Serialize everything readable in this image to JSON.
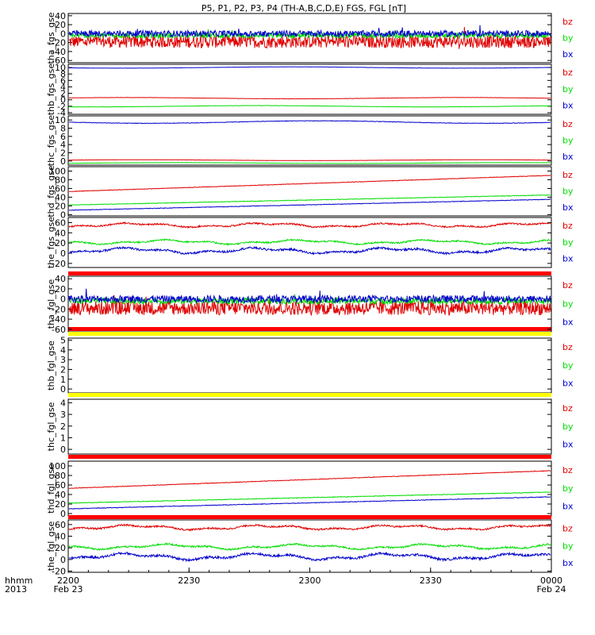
{
  "chart_data": {
    "type": "line",
    "title": "P5, P1, P2, P3, P4 (TH-A,B,C,D,E) FGS, FGL [nT]",
    "x_tick_labels": [
      "2200",
      "2230",
      "2300",
      "2330",
      "0000"
    ],
    "x_date_labels": [
      "Feb 23",
      "Feb 24"
    ],
    "x_axis_header": [
      "hhmm",
      "2013"
    ],
    "xlim": [
      "2200",
      "0000"
    ],
    "series_names": [
      "bz",
      "by",
      "bx"
    ],
    "colors": {
      "bz": "#e00000",
      "by": "#00dd00",
      "bx": "#0000cc",
      "bar_red": "#ff0000",
      "bar_yellow": "#ffff00"
    },
    "panels": [
      {
        "ylabel": "tha_fgs_gse",
        "yticks": [
          "40",
          "20",
          "0",
          "-20",
          "-40",
          "-60"
        ],
        "ylim": [
          -65,
          45
        ],
        "series": [
          {
            "name": "bz",
            "level": -18,
            "noise": 14,
            "mode": "noisy"
          },
          {
            "name": "by",
            "level": -4,
            "noise": 6,
            "mode": "noisy"
          },
          {
            "name": "bx",
            "level": 0,
            "noise": 7,
            "mode": "noisy"
          }
        ],
        "status_bar": "red"
      },
      {
        "ylabel": "thb_fgs_gse",
        "yticks": [
          "10",
          "8",
          "6",
          "4",
          "2",
          "0",
          "-2",
          "-4"
        ],
        "ylim": [
          -4.5,
          11
        ],
        "series": [
          {
            "name": "bz",
            "level": 0.5,
            "noise": 0.2,
            "mode": "smooth"
          },
          {
            "name": "by",
            "level": -2,
            "noise": 0.2,
            "mode": "smooth"
          },
          {
            "name": "bx",
            "level": 10,
            "noise": 0.2,
            "mode": "smooth"
          }
        ],
        "status_bar": null
      },
      {
        "ylabel": "thc_fgs_gse",
        "yticks": [
          "10",
          "8",
          "6",
          "4",
          "2",
          "0"
        ],
        "ylim": [
          -1,
          11
        ],
        "series": [
          {
            "name": "bz",
            "level": 0.2,
            "noise": 0.1,
            "mode": "smooth"
          },
          {
            "name": "by",
            "level": -0.5,
            "noise": 0.1,
            "mode": "smooth"
          },
          {
            "name": "bx",
            "level": 9.5,
            "noise": 0.3,
            "mode": "smooth"
          }
        ],
        "status_bar": null
      },
      {
        "ylabel": "thd_fgs_gse",
        "yticks": [
          "100",
          "80",
          "60",
          "40",
          "20",
          "0"
        ],
        "ylim": [
          -3,
          110
        ],
        "series": [
          {
            "name": "bz",
            "start": 53,
            "end": 90,
            "mode": "ramp"
          },
          {
            "name": "by",
            "start": 22,
            "end": 45,
            "mode": "ramp"
          },
          {
            "name": "bx",
            "start": 10,
            "end": 35,
            "mode": "ramp"
          }
        ],
        "status_bar": null
      },
      {
        "ylabel": "the_fgs_gse",
        "yticks": [
          "60",
          "40",
          "20",
          "0",
          "-20"
        ],
        "ylim": [
          -28,
          70
        ],
        "series": [
          {
            "name": "bz",
            "level": 55,
            "noise": 3,
            "mode": "wavy"
          },
          {
            "name": "by",
            "level": 22,
            "noise": 3,
            "mode": "wavy"
          },
          {
            "name": "bx",
            "level": 5,
            "noise": 4,
            "mode": "wavy"
          }
        ],
        "status_bar": "red"
      },
      {
        "ylabel": "tha_fgl_gse",
        "yticks": [
          "40",
          "20",
          "0",
          "-20",
          "-40",
          "-60"
        ],
        "ylim": [
          -65,
          45
        ],
        "series": [
          {
            "name": "bz",
            "level": -18,
            "noise": 14,
            "mode": "noisy"
          },
          {
            "name": "by",
            "level": -4,
            "noise": 6,
            "mode": "noisy"
          },
          {
            "name": "bx",
            "level": 0,
            "noise": 7,
            "mode": "noisy"
          }
        ],
        "status_bar": "yellow"
      },
      {
        "ylabel": "thb_fgl_gse",
        "yticks": [
          "5",
          "4",
          "3",
          "2",
          "1",
          "0"
        ],
        "ylim": [
          -0.4,
          5.2
        ],
        "series": [],
        "status_bar": "yellow"
      },
      {
        "ylabel": "thc_fgl_gse",
        "yticks": [
          "4",
          "3",
          "2",
          "1",
          "0"
        ],
        "ylim": [
          -0.4,
          4.3
        ],
        "series": [],
        "status_bar": "red"
      },
      {
        "ylabel": "thd_fgl_gse",
        "yticks": [
          "100",
          "80",
          "60",
          "40",
          "20",
          "0"
        ],
        "ylim": [
          -5,
          110
        ],
        "series": [
          {
            "name": "bz",
            "start": 53,
            "end": 90,
            "mode": "ramp"
          },
          {
            "name": "by",
            "start": 22,
            "end": 45,
            "mode": "ramp"
          },
          {
            "name": "bx",
            "start": 10,
            "end": 35,
            "mode": "ramp"
          }
        ],
        "status_bar": "red"
      },
      {
        "ylabel": "the_fgl_gse",
        "yticks": [
          "60",
          "40",
          "20",
          "0",
          "-20"
        ],
        "ylim": [
          -22,
          68
        ],
        "series": [
          {
            "name": "bz",
            "level": 55,
            "noise": 3,
            "mode": "wavy"
          },
          {
            "name": "by",
            "level": 22,
            "noise": 3,
            "mode": "wavy"
          },
          {
            "name": "bx",
            "level": 5,
            "noise": 4,
            "mode": "wavy"
          }
        ],
        "status_bar": null
      }
    ]
  }
}
